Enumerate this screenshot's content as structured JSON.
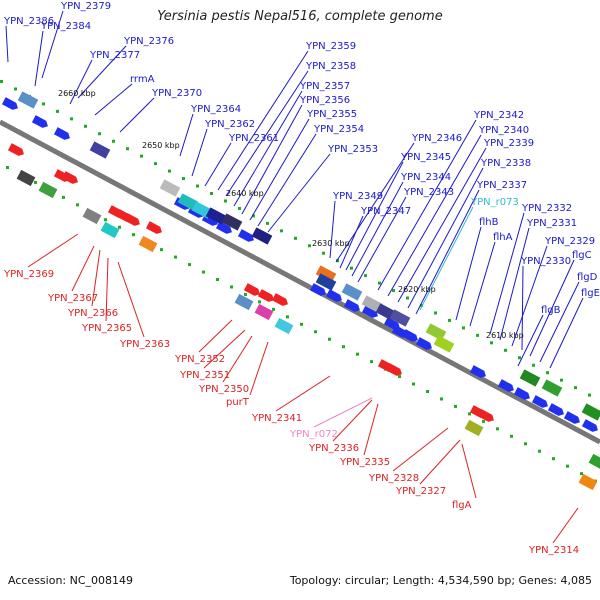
{
  "title": "Yersinia pestis Nepal516, complete genome",
  "accession": "Accession: NC_008149",
  "summary": "Topology: circular; Length: 4,534,590 bp; Genes: 4,085",
  "colors": {
    "label_forward": "#1a1acc",
    "label_reverse": "#dd2222",
    "label_trna": "#33bbcc",
    "label_rrna": "#ee88cc",
    "backbone": "#888888",
    "tick": "#22aa22"
  },
  "kbp_ticks": [
    "2660 kbp",
    "2650 kbp",
    "2640 kbp",
    "2630 kbp",
    "2620 kbp",
    "2610 kbp"
  ],
  "forward_labels": [
    "YPN_2386",
    "YPN_2379",
    "YPN_2384",
    "YPN_2376",
    "YPN_2377",
    "rrmA",
    "YPN_2370",
    "YPN_2364",
    "YPN_2362",
    "YPN_2361",
    "YPN_2359",
    "YPN_2358",
    "YPN_2357",
    "YPN_2356",
    "YPN_2355",
    "YPN_2354",
    "YPN_2353",
    "YPN_2346",
    "YPN_2345",
    "YPN_2344",
    "YPN_2343",
    "YPN_2349",
    "YPN_2347",
    "YPN_2342",
    "YPN_2340",
    "YPN_2339",
    "YPN_2338",
    "YPN_2337",
    "YPN_r073",
    "flhB",
    "flhA",
    "YPN_2332",
    "YPN_2331",
    "YPN_2329",
    "YPN_2330",
    "flgC",
    "flgD",
    "flgE",
    "flgB"
  ],
  "reverse_labels": [
    "YPN_2369",
    "YPN_2367",
    "YPN_2366",
    "YPN_2365",
    "YPN_2363",
    "YPN_2352",
    "YPN_2351",
    "YPN_2350",
    "purT",
    "YPN_2341",
    "YPN_r072",
    "YPN_2336",
    "YPN_2335",
    "YPN_2328",
    "YPN_2327",
    "flgA",
    "YPN_2314"
  ]
}
